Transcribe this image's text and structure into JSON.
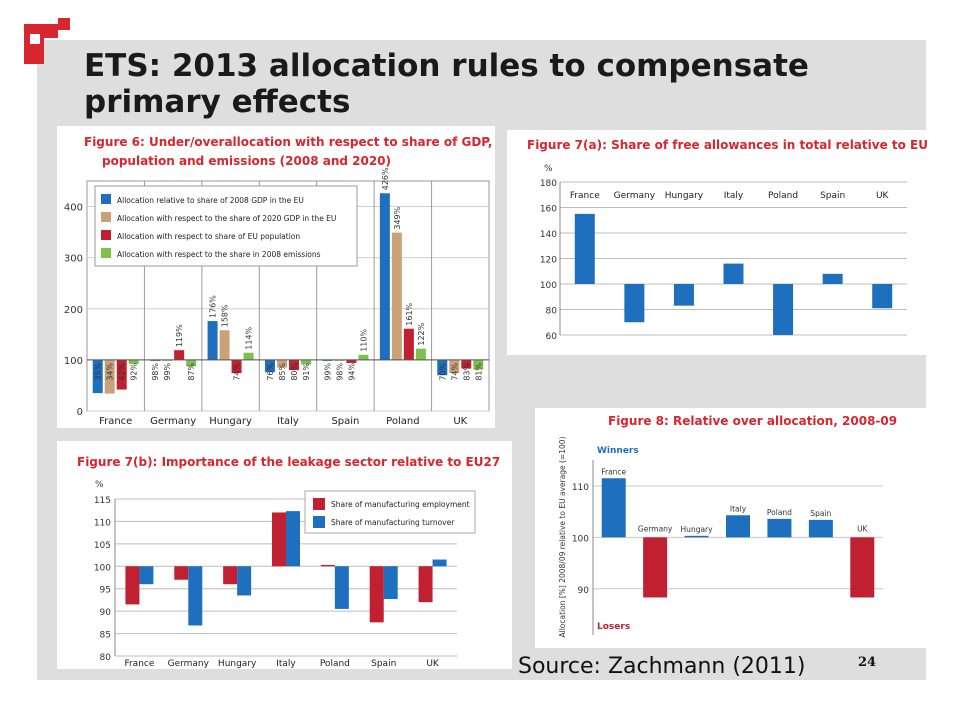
{
  "slide": {
    "title_line1": "ETS: 2013 allocation rules to compensate",
    "title_line2": "primary effects",
    "source": "Source: Zachmann (2011)",
    "page_number": "24"
  },
  "colors": {
    "blue": "#1f6fbf",
    "tan": "#c9a27a",
    "red": "#c0202f",
    "green": "#7cc24a",
    "title_red": "#d7262e",
    "winners_blue": "#1f6fbf"
  },
  "chart_data": [
    {
      "id": "fig6",
      "type": "bar",
      "title": "Figure 6: Under/overallocation with respect to share of GDP, population and emissions (2008 and 2020)",
      "title_line1": "Figure 6: Under/overallocation with respect to share of GDP,",
      "title_line2": "population and emissions (2008 and 2020)",
      "ylim": [
        0,
        450
      ],
      "baseline": 100,
      "yticks": [
        "0",
        "100",
        "200",
        "300",
        "400"
      ],
      "categories": [
        "France",
        "Germany",
        "Hungary",
        "Italy",
        "Spain",
        "Poland",
        "UK"
      ],
      "series": [
        {
          "name": "Allocation relative to share of 2008 GDP in the EU",
          "values": [
            35,
            98,
            176,
            76,
            99,
            426,
            70
          ],
          "labels": [
            "35%",
            "98%",
            "176%",
            "76%",
            "99%",
            "426%",
            "70%"
          ]
        },
        {
          "name": "Allocation with respect to the share of 2020 GDP in the EU",
          "values": [
            34,
            99,
            158,
            85,
            98,
            349,
            74
          ],
          "labels": [
            "34%",
            "99%",
            "158%",
            "85%",
            "98%",
            "349%",
            "74%"
          ]
        },
        {
          "name": "Allocation with respect to share of EU population",
          "values": [
            42,
            119,
            74,
            80,
            94,
            161,
            83
          ],
          "labels": [
            "42%",
            "119%",
            "74%",
            "80%",
            "94%",
            "161%",
            "83%"
          ]
        },
        {
          "name": "Allocation with respect to the share in 2008 emissions",
          "values": [
            92,
            87,
            114,
            91,
            110,
            122,
            81
          ],
          "labels": [
            "92%",
            "87%",
            "114%",
            "91%",
            "110%",
            "122%",
            "81%"
          ]
        }
      ]
    },
    {
      "id": "fig7a",
      "type": "bar",
      "title": "Figure 7(a): Share of free allowances in total  relative to EU27",
      "ylabel": "%",
      "ylim": [
        60,
        180
      ],
      "baseline": 100,
      "yticks": [
        "60",
        "80",
        "100",
        "120",
        "140",
        "160",
        "180"
      ],
      "categories": [
        "France",
        "Germany",
        "Hungary",
        "Italy",
        "Poland",
        "Spain",
        "UK"
      ],
      "values": [
        155,
        70,
        83,
        116,
        60,
        108,
        81
      ]
    },
    {
      "id": "fig7b",
      "type": "bar",
      "title": "Figure 7(b): Importance of the leakage sector relative to EU27",
      "ylabel": "%",
      "ylim": [
        80,
        115
      ],
      "baseline": 100,
      "yticks": [
        "80",
        "85",
        "90",
        "95",
        "100",
        "105",
        "110",
        "115"
      ],
      "categories": [
        "France",
        "Germany",
        "Hungary",
        "Italy",
        "Poland",
        "Spain",
        "UK"
      ],
      "series": [
        {
          "name": "Share of manufacturing employment",
          "values": [
            91.5,
            97,
            96,
            112,
            100.3,
            87.5,
            92
          ]
        },
        {
          "name": "Share of manufacturing turnover",
          "values": [
            96,
            86.8,
            93.5,
            112.3,
            90.5,
            92.7,
            101.5
          ]
        }
      ]
    },
    {
      "id": "fig8",
      "type": "bar",
      "title": "Figure 8: Relative over allocation, 2008-09",
      "ylabel": "Allocation [%] 2008/09 relative to EU average (=100)",
      "ylim": [
        81,
        117
      ],
      "baseline": 100,
      "yticks": [
        "90",
        "100",
        "110"
      ],
      "winners_label": "Winners",
      "losers_label": "Losers",
      "categories": [
        "France",
        "Germany",
        "Hungary",
        "Italy",
        "Poland",
        "Spain",
        "UK"
      ],
      "values": [
        111.5,
        88.3,
        100.3,
        104.3,
        103.6,
        103.4,
        88.3
      ]
    }
  ]
}
